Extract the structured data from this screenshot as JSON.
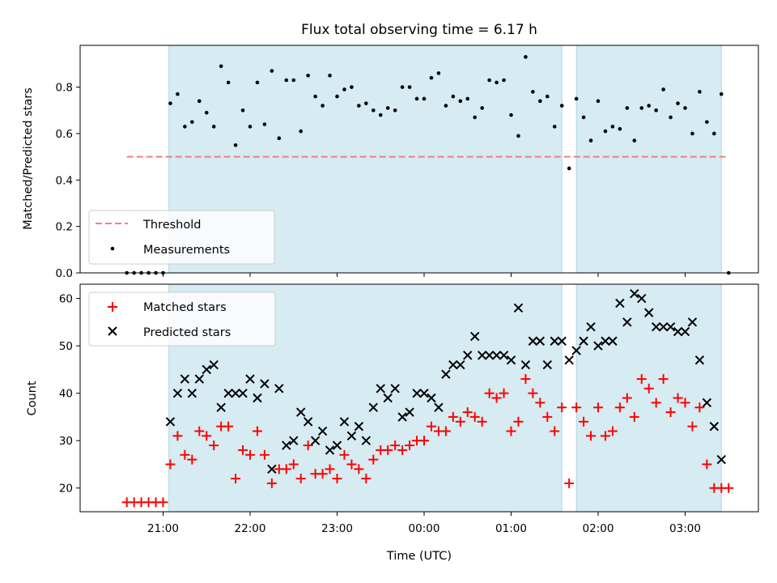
{
  "chart_data": {
    "title": "Flux total observing time = 6.17 h",
    "xlabel": "Time (UTC)",
    "x_ticks": [
      "21:00",
      "22:00",
      "23:00",
      "00:00",
      "01:00",
      "02:00",
      "03:00"
    ],
    "observing_windows": [
      [
        "21:04",
        "01:35"
      ],
      [
        "01:45",
        "03:25"
      ]
    ],
    "colors": {
      "window": "#add8e6",
      "threshold": "#f08080",
      "measurements": "#000000",
      "matched": "#ff0000",
      "predicted": "#000000"
    },
    "panels": [
      {
        "type": "scatter",
        "ylabel": "Matched/Predicted stars",
        "ylim": [
          0,
          0.98
        ],
        "y_ticks": [
          "0.0",
          "0.2",
          "0.4",
          "0.6",
          "0.8"
        ],
        "threshold": {
          "name": "Threshold",
          "y": 0.5,
          "x_range": [
            "20:35",
            "03:28"
          ]
        },
        "legend_position": "lower-left",
        "series": [
          {
            "name": "Measurements",
            "x": [
              "20:35",
              "20:40",
              "20:45",
              "20:50",
              "20:55",
              "21:00",
              "21:05",
              "21:10",
              "21:15",
              "21:20",
              "21:25",
              "21:30",
              "21:35",
              "21:40",
              "21:45",
              "21:50",
              "21:55",
              "22:00",
              "22:05",
              "22:10",
              "22:15",
              "22:20",
              "22:25",
              "22:30",
              "22:35",
              "22:40",
              "22:45",
              "22:50",
              "22:55",
              "23:00",
              "23:05",
              "23:10",
              "23:15",
              "23:20",
              "23:25",
              "23:30",
              "23:35",
              "23:40",
              "23:45",
              "23:50",
              "23:55",
              "00:00",
              "00:05",
              "00:10",
              "00:15",
              "00:20",
              "00:25",
              "00:30",
              "00:35",
              "00:40",
              "00:45",
              "00:50",
              "00:55",
              "01:00",
              "01:05",
              "01:10",
              "01:15",
              "01:20",
              "01:25",
              "01:30",
              "01:35",
              "01:40",
              "01:45",
              "01:50",
              "01:55",
              "02:00",
              "02:05",
              "02:10",
              "02:15",
              "02:20",
              "02:25",
              "02:30",
              "02:35",
              "02:40",
              "02:45",
              "02:50",
              "02:55",
              "03:00",
              "03:05",
              "03:10",
              "03:15",
              "03:20",
              "03:25",
              "03:30"
            ],
            "y": [
              0.0,
              0.0,
              0.0,
              0.0,
              0.0,
              0.0,
              0.73,
              0.77,
              0.63,
              0.65,
              0.74,
              0.69,
              0.63,
              0.89,
              0.82,
              0.55,
              0.7,
              0.63,
              0.82,
              0.64,
              0.87,
              0.58,
              0.83,
              0.83,
              0.61,
              0.85,
              0.76,
              0.72,
              0.85,
              0.76,
              0.79,
              0.8,
              0.72,
              0.73,
              0.7,
              0.68,
              0.71,
              0.7,
              0.8,
              0.8,
              0.75,
              0.75,
              0.84,
              0.86,
              0.72,
              0.76,
              0.74,
              0.75,
              0.67,
              0.71,
              0.83,
              0.82,
              0.83,
              0.68,
              0.59,
              0.93,
              0.78,
              0.74,
              0.76,
              0.63,
              0.72,
              0.45,
              0.75,
              0.67,
              0.57,
              0.74,
              0.61,
              0.63,
              0.62,
              0.71,
              0.57,
              0.71,
              0.72,
              0.7,
              0.79,
              0.67,
              0.73,
              0.71,
              0.6,
              0.78,
              0.65,
              0.6,
              0.77,
              0.0
            ]
          }
        ]
      },
      {
        "type": "scatter",
        "ylabel": "Count",
        "ylim": [
          15,
          63
        ],
        "y_ticks": [
          "20",
          "30",
          "40",
          "50",
          "60"
        ],
        "legend_position": "upper-left",
        "series": [
          {
            "name": "Matched stars",
            "x": [
              "20:35",
              "20:40",
              "20:45",
              "20:50",
              "20:55",
              "21:00",
              "21:05",
              "21:10",
              "21:15",
              "21:20",
              "21:25",
              "21:30",
              "21:35",
              "21:40",
              "21:45",
              "21:50",
              "21:55",
              "22:00",
              "22:05",
              "22:10",
              "22:15",
              "22:20",
              "22:25",
              "22:30",
              "22:35",
              "22:40",
              "22:45",
              "22:50",
              "22:55",
              "23:00",
              "23:05",
              "23:10",
              "23:15",
              "23:20",
              "23:25",
              "23:30",
              "23:35",
              "23:40",
              "23:45",
              "23:50",
              "23:55",
              "00:00",
              "00:05",
              "00:10",
              "00:15",
              "00:20",
              "00:25",
              "00:30",
              "00:35",
              "00:40",
              "00:45",
              "00:50",
              "00:55",
              "01:00",
              "01:05",
              "01:10",
              "01:15",
              "01:20",
              "01:25",
              "01:30",
              "01:35",
              "01:40",
              "01:45",
              "01:50",
              "01:55",
              "02:00",
              "02:05",
              "02:10",
              "02:15",
              "02:20",
              "02:25",
              "02:30",
              "02:35",
              "02:40",
              "02:45",
              "02:50",
              "02:55",
              "03:00",
              "03:05",
              "03:10",
              "03:15",
              "03:20",
              "03:25",
              "03:30"
            ],
            "y": [
              17,
              17,
              17,
              17,
              17,
              17,
              25,
              31,
              27,
              26,
              32,
              31,
              29,
              33,
              33,
              22,
              28,
              27,
              32,
              27,
              21,
              24,
              24,
              25,
              22,
              29,
              23,
              23,
              24,
              22,
              27,
              25,
              24,
              22,
              26,
              28,
              28,
              29,
              28,
              29,
              30,
              30,
              33,
              32,
              32,
              35,
              34,
              36,
              35,
              34,
              40,
              39,
              40,
              32,
              34,
              43,
              40,
              38,
              35,
              32,
              37,
              21,
              37,
              34,
              31,
              37,
              31,
              32,
              37,
              39,
              35,
              43,
              41,
              38,
              43,
              36,
              39,
              38,
              33,
              37,
              25,
              20,
              20,
              20
            ]
          },
          {
            "name": "Predicted stars",
            "x": [
              "21:05",
              "21:10",
              "21:15",
              "21:20",
              "21:25",
              "21:30",
              "21:35",
              "21:40",
              "21:45",
              "21:50",
              "21:55",
              "22:00",
              "22:05",
              "22:10",
              "22:15",
              "22:20",
              "22:25",
              "22:30",
              "22:35",
              "22:40",
              "22:45",
              "22:50",
              "22:55",
              "23:00",
              "23:05",
              "23:10",
              "23:15",
              "23:20",
              "23:25",
              "23:30",
              "23:35",
              "23:40",
              "23:45",
              "23:50",
              "23:55",
              "00:00",
              "00:05",
              "00:10",
              "00:15",
              "00:20",
              "00:25",
              "00:30",
              "00:35",
              "00:40",
              "00:45",
              "00:50",
              "00:55",
              "01:00",
              "01:05",
              "01:10",
              "01:15",
              "01:20",
              "01:25",
              "01:30",
              "01:35",
              "01:40",
              "01:45",
              "01:50",
              "01:55",
              "02:00",
              "02:05",
              "02:10",
              "02:15",
              "02:20",
              "02:25",
              "02:30",
              "02:35",
              "02:40",
              "02:45",
              "02:50",
              "02:55",
              "03:00",
              "03:05",
              "03:10",
              "03:15",
              "03:20",
              "03:25"
            ],
            "y": [
              34,
              40,
              43,
              40,
              43,
              45,
              46,
              37,
              40,
              40,
              40,
              43,
              39,
              42,
              24,
              41,
              29,
              30,
              36,
              34,
              30,
              32,
              28,
              29,
              34,
              31,
              33,
              30,
              37,
              41,
              39,
              41,
              35,
              36,
              40,
              40,
              39,
              37,
              44,
              46,
              46,
              48,
              52,
              48,
              48,
              48,
              48,
              47,
              58,
              46,
              51,
              51,
              46,
              51,
              51,
              47,
              49,
              51,
              54,
              50,
              51,
              51,
              59,
              55,
              61,
              60,
              57,
              54,
              54,
              54,
              53,
              53,
              55,
              47,
              38,
              33,
              26
            ]
          }
        ]
      }
    ]
  }
}
